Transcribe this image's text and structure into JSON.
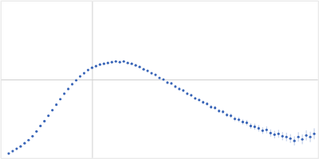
{
  "chart_data": {
    "type": "scatter",
    "color": "#3a66b8",
    "marker": "circle",
    "grid": true,
    "tick_labels": false,
    "xlim": [
      0,
      0.4
    ],
    "xticks": [
      0.115
    ],
    "ylim": [
      0,
      2
    ],
    "yticks": [
      1
    ],
    "x": [
      0.01,
      0.015,
      0.02,
      0.025,
      0.03,
      0.035,
      0.04,
      0.045,
      0.05,
      0.055,
      0.06,
      0.065,
      0.07,
      0.075,
      0.08,
      0.085,
      0.09,
      0.095,
      0.1,
      0.105,
      0.11,
      0.115,
      0.12,
      0.125,
      0.13,
      0.135,
      0.14,
      0.145,
      0.15,
      0.155,
      0.16,
      0.165,
      0.17,
      0.175,
      0.18,
      0.185,
      0.19,
      0.195,
      0.2,
      0.205,
      0.21,
      0.215,
      0.22,
      0.225,
      0.23,
      0.235,
      0.24,
      0.245,
      0.25,
      0.255,
      0.26,
      0.265,
      0.27,
      0.275,
      0.28,
      0.285,
      0.29,
      0.295,
      0.3,
      0.305,
      0.31,
      0.315,
      0.32,
      0.325,
      0.33,
      0.335,
      0.34,
      0.345,
      0.35,
      0.355,
      0.36,
      0.365,
      0.37,
      0.375,
      0.38,
      0.385,
      0.39,
      0.395
    ],
    "values": [
      0.06,
      0.09,
      0.12,
      0.15,
      0.19,
      0.23,
      0.28,
      0.34,
      0.41,
      0.47,
      0.54,
      0.61,
      0.68,
      0.75,
      0.82,
      0.88,
      0.94,
      0.99,
      1.04,
      1.08,
      1.12,
      1.15,
      1.17,
      1.19,
      1.2,
      1.21,
      1.22,
      1.23,
      1.22,
      1.23,
      1.21,
      1.2,
      1.18,
      1.16,
      1.13,
      1.11,
      1.08,
      1.06,
      1.02,
      1.0,
      0.96,
      0.95,
      0.91,
      0.88,
      0.86,
      0.82,
      0.8,
      0.76,
      0.74,
      0.71,
      0.69,
      0.65,
      0.64,
      0.6,
      0.59,
      0.55,
      0.54,
      0.5,
      0.49,
      0.46,
      0.45,
      0.41,
      0.4,
      0.38,
      0.35,
      0.36,
      0.32,
      0.3,
      0.31,
      0.28,
      0.27,
      0.25,
      0.22,
      0.27,
      0.24,
      0.29,
      0.27,
      0.31
    ],
    "errors": [
      0.005,
      0.005,
      0.005,
      0.005,
      0.005,
      0.005,
      0.005,
      0.005,
      0.005,
      0.005,
      0.005,
      0.005,
      0.005,
      0.005,
      0.005,
      0.005,
      0.005,
      0.005,
      0.005,
      0.005,
      0.005,
      0.005,
      0.005,
      0.005,
      0.005,
      0.005,
      0.005,
      0.005,
      0.005,
      0.006,
      0.006,
      0.007,
      0.007,
      0.008,
      0.008,
      0.009,
      0.009,
      0.01,
      0.01,
      0.011,
      0.012,
      0.013,
      0.014,
      0.015,
      0.016,
      0.017,
      0.018,
      0.019,
      0.02,
      0.021,
      0.022,
      0.023,
      0.024,
      0.025,
      0.026,
      0.027,
      0.028,
      0.029,
      0.03,
      0.032,
      0.034,
      0.036,
      0.038,
      0.04,
      0.042,
      0.044,
      0.046,
      0.048,
      0.05,
      0.052,
      0.054,
      0.056,
      0.058,
      0.06,
      0.062,
      0.064,
      0.066,
      0.07
    ]
  }
}
